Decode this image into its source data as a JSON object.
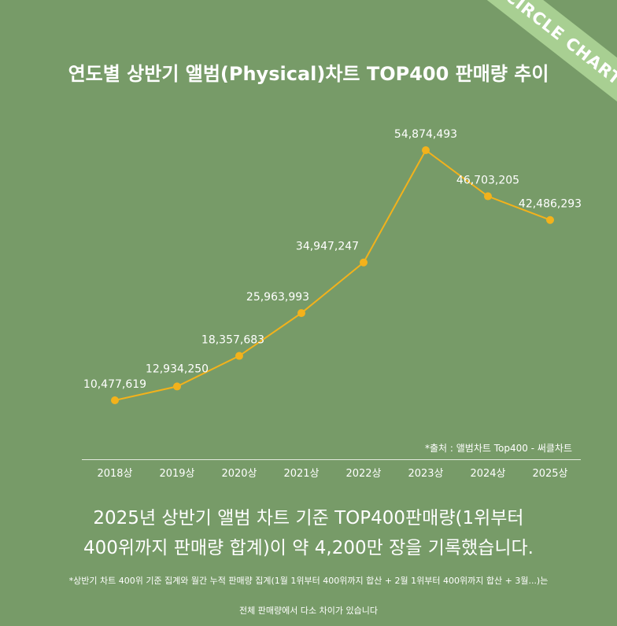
{
  "brand": {
    "ribbon_text": "CIRCLE CHART"
  },
  "chart_data": {
    "type": "line",
    "title": "연도별 상반기 앨범(Physical)차트 TOP400 판매량 추이",
    "categories": [
      "2018상",
      "2019상",
      "2020상",
      "2021상",
      "2022상",
      "2023상",
      "2024상",
      "2025상"
    ],
    "series": [
      {
        "values": [
          10477619,
          12934250,
          18357683,
          25963993,
          34947247,
          54874493,
          46703205,
          42486293
        ],
        "labels": [
          "10,477,619",
          "12,934,250",
          "18,357,683",
          "25,963,993",
          "34,947,247",
          "54,874,493",
          "46,703,205",
          "42,486,293"
        ]
      }
    ],
    "line_color": "#f3b21b",
    "grid": false
  },
  "source_note": "*출처 : 앨범차트 Top400 - 써클차트",
  "summary": {
    "line1": "2025년 상반기 앨범 차트 기준 TOP400판매량(1위부터",
    "line2": "400위까지 판매량 합계)이 약 4,200만 장을 기록했습니다."
  },
  "footnote": {
    "line1": "*상반기 차트 400위 기준 집계와 월간 누적 판매량 집계(1월 1위부터 400위까지 합산 + 2월 1위부터 400위까지 합산 + 3월...)는",
    "line2": "전체 판매량에서 다소 차이가 있습니다"
  }
}
